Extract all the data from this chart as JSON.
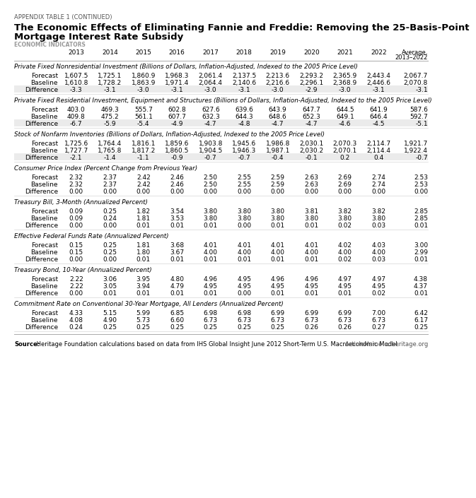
{
  "appendix_label": "APPENDIX TABLE 1 (CONTINUED)",
  "title_line1": "The Economic Effects of Eliminating Fannie and Freddie: Removing the 25-Basis-Point",
  "title_line2": "Mortgage Interest Rate Subsidy",
  "section_label": "ECONOMIC INDICATORS",
  "col_headers": [
    "2013",
    "2014",
    "2015",
    "2016",
    "2017",
    "2018",
    "2019",
    "2020",
    "2021",
    "2022",
    "Average,\n2013–2022"
  ],
  "sections": [
    {
      "header": "Private Fixed Nonresidential Investment (Billions of Dollars, Inflation-Adjusted, Indexed to the 2005 Price Level)",
      "rows": [
        {
          "label": "Forecast",
          "values": [
            "1,607.5",
            "1,725.1",
            "1,860.9",
            "1,968.3",
            "2,061.4",
            "2,137.5",
            "2,213.6",
            "2,293.2",
            "2,365.9",
            "2,443.4",
            "2,067.7"
          ]
        },
        {
          "label": "Baseline",
          "values": [
            "1,610.8",
            "1,728.2",
            "1,863.9",
            "1,971.4",
            "2,064.4",
            "2,140.6",
            "2,216.6",
            "2,296.1",
            "2,368.9",
            "2,446.6",
            "2,070.8"
          ]
        },
        {
          "label": "Difference",
          "values": [
            "-3.3",
            "-3.1",
            "-3.0",
            "-3.1",
            "-3.0",
            "-3.1",
            "-3.0",
            "-2.9",
            "-3.0",
            "-3.1",
            "-3.1"
          ]
        }
      ],
      "diff_shaded": true
    },
    {
      "header": "Private Fixed Residential Investment, Equipment and Structures (Billions of Dollars, Inflation-Adjusted, Indexed to the 2005 Price Level)",
      "rows": [
        {
          "label": "Forecast",
          "values": [
            "403.0",
            "469.3",
            "555.7",
            "602.8",
            "627.6",
            "639.6",
            "643.9",
            "647.7",
            "644.5",
            "641.9",
            "587.6"
          ]
        },
        {
          "label": "Baseline",
          "values": [
            "409.8",
            "475.2",
            "561.1",
            "607.7",
            "632.3",
            "644.3",
            "648.6",
            "652.3",
            "649.1",
            "646.4",
            "592.7"
          ]
        },
        {
          "label": "Difference",
          "values": [
            "-6.7",
            "-5.9",
            "-5.4",
            "-4.9",
            "-4.7",
            "-4.8",
            "-4.7",
            "-4.7",
            "-4.6",
            "-4.5",
            "-5.1"
          ]
        }
      ],
      "diff_shaded": true
    },
    {
      "header": "Stock of Nonfarm Inventories (Billions of Dollars, Inflation-Adjusted, Indexed to the 2005 Price Level)",
      "rows": [
        {
          "label": "Forecast",
          "values": [
            "1,725.6",
            "1,764.4",
            "1,816.1",
            "1,859.6",
            "1,903.8",
            "1,945.6",
            "1,986.8",
            "2,030.1",
            "2,070.3",
            "2,114.7",
            "1,921.7"
          ]
        },
        {
          "label": "Baseline",
          "values": [
            "1,727.7",
            "1,765.8",
            "1,817.2",
            "1,860.5",
            "1,904.5",
            "1,946.3",
            "1,987.1",
            "2,030.2",
            "2,070.1",
            "2,114.4",
            "1,922.4"
          ]
        },
        {
          "label": "Difference",
          "values": [
            "-2.1",
            "-1.4",
            "-1.1",
            "-0.9",
            "-0.7",
            "-0.7",
            "-0.4",
            "-0.1",
            "0.2",
            "0.4",
            "-0.7"
          ]
        }
      ],
      "diff_shaded": true
    },
    {
      "header": "Consumer Price Index (Percent Change from Previous Year)",
      "rows": [
        {
          "label": "Forecast",
          "values": [
            "2.32",
            "2.37",
            "2.42",
            "2.46",
            "2.50",
            "2.55",
            "2.59",
            "2.63",
            "2.69",
            "2.74",
            "2.53"
          ]
        },
        {
          "label": "Baseline",
          "values": [
            "2.32",
            "2.37",
            "2.42",
            "2.46",
            "2.50",
            "2.55",
            "2.59",
            "2.63",
            "2.69",
            "2.74",
            "2.53"
          ]
        },
        {
          "label": "Difference",
          "values": [
            "0.00",
            "0.00",
            "0.00",
            "0.00",
            "0.00",
            "0.00",
            "0.00",
            "0.00",
            "0.00",
            "0.00",
            "0.00"
          ]
        }
      ],
      "diff_shaded": false
    },
    {
      "header": "Treasury Bill, 3-Month (Annualized Percent)",
      "rows": [
        {
          "label": "Forecast",
          "values": [
            "0.09",
            "0.25",
            "1.82",
            "3.54",
            "3.80",
            "3.80",
            "3.80",
            "3.81",
            "3.82",
            "3.82",
            "2.85"
          ]
        },
        {
          "label": "Baseline",
          "values": [
            "0.09",
            "0.24",
            "1.81",
            "3.53",
            "3.80",
            "3.80",
            "3.80",
            "3.80",
            "3.80",
            "3.80",
            "2.85"
          ]
        },
        {
          "label": "Difference",
          "values": [
            "0.00",
            "0.00",
            "0.01",
            "0.01",
            "0.01",
            "0.00",
            "0.01",
            "0.01",
            "0.02",
            "0.03",
            "0.01"
          ]
        }
      ],
      "diff_shaded": false
    },
    {
      "header": "Effective Federal Funds Rate (Annualized Percent)",
      "rows": [
        {
          "label": "Forecast",
          "values": [
            "0.15",
            "0.25",
            "1.81",
            "3.68",
            "4.01",
            "4.01",
            "4.01",
            "4.01",
            "4.02",
            "4.03",
            "3.00"
          ]
        },
        {
          "label": "Baseline",
          "values": [
            "0.15",
            "0.25",
            "1.80",
            "3.67",
            "4.00",
            "4.00",
            "4.00",
            "4.00",
            "4.00",
            "4.00",
            "2.99"
          ]
        },
        {
          "label": "Difference",
          "values": [
            "0.00",
            "0.00",
            "0.01",
            "0.01",
            "0.01",
            "0.01",
            "0.01",
            "0.01",
            "0.02",
            "0.03",
            "0.01"
          ]
        }
      ],
      "diff_shaded": false
    },
    {
      "header": "Treasury Bond, 10-Year (Annualized Percent)",
      "rows": [
        {
          "label": "Forecast",
          "values": [
            "2.22",
            "3.06",
            "3.95",
            "4.80",
            "4.96",
            "4.95",
            "4.96",
            "4.96",
            "4.97",
            "4.97",
            "4.38"
          ]
        },
        {
          "label": "Baseline",
          "values": [
            "2.22",
            "3.05",
            "3.94",
            "4.79",
            "4.95",
            "4.95",
            "4.95",
            "4.95",
            "4.95",
            "4.95",
            "4.37"
          ]
        },
        {
          "label": "Difference",
          "values": [
            "0.00",
            "0.01",
            "0.01",
            "0.01",
            "0.01",
            "0.00",
            "0.01",
            "0.01",
            "0.01",
            "0.02",
            "0.01"
          ]
        }
      ],
      "diff_shaded": false
    },
    {
      "header": "Commitment Rate on Conventional 30-Year Mortgage, All Lenders (Annualized Percent)",
      "rows": [
        {
          "label": "Forecast",
          "values": [
            "4.33",
            "5.15",
            "5.99",
            "6.85",
            "6.98",
            "6.98",
            "6.99",
            "6.99",
            "6.99",
            "7.00",
            "6.42"
          ]
        },
        {
          "label": "Baseline",
          "values": [
            "4.08",
            "4.90",
            "5.73",
            "6.60",
            "6.73",
            "6.73",
            "6.73",
            "6.73",
            "6.73",
            "6.73",
            "6.17"
          ]
        },
        {
          "label": "Difference",
          "values": [
            "0.24",
            "0.25",
            "0.25",
            "0.25",
            "0.25",
            "0.25",
            "0.25",
            "0.26",
            "0.26",
            "0.27",
            "0.25"
          ]
        }
      ],
      "diff_shaded": false
    }
  ],
  "source_bold": "Source:",
  "source_rest": " Heritage Foundation calculations based on data from IHS Global Insight June 2012 Short-Term U.S. Macroeconomic Model.",
  "footer_right": "ArticleName",
  "footer_icon": "⌂",
  "footer_url": "heritage.org",
  "bg_color": "#ffffff",
  "diff_shaded_color": "#ebebeb",
  "sep_color": "#aaaaaa",
  "light_sep_color": "#cccccc"
}
